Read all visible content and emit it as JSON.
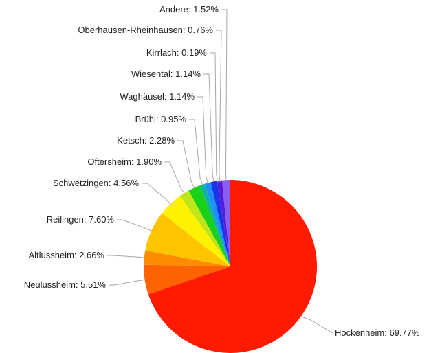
{
  "chart_data": {
    "type": "pie",
    "title": "",
    "start_angle_deg": 0,
    "direction": "clockwise",
    "label_format": "{name}: {percent}%",
    "slices": [
      {
        "name": "Hockenheim",
        "percent": "69.77",
        "value": 69.77,
        "color": "#ff1a00"
      },
      {
        "name": "Neulussheim",
        "percent": "5.51",
        "value": 5.51,
        "color": "#ff6200"
      },
      {
        "name": "Altlussheim",
        "percent": "2.66",
        "value": 2.66,
        "color": "#ff8c00"
      },
      {
        "name": "Reilingen",
        "percent": "7.60",
        "value": 7.6,
        "color": "#ffc400"
      },
      {
        "name": "Schwetzingen",
        "percent": "4.56",
        "value": 4.56,
        "color": "#fff200"
      },
      {
        "name": "Oftersheim",
        "percent": "1.90",
        "value": 1.9,
        "color": "#bfe61a"
      },
      {
        "name": "Ketsch",
        "percent": "2.28",
        "value": 2.28,
        "color": "#1ad11a"
      },
      {
        "name": "Brühl",
        "percent": "0.95",
        "value": 0.95,
        "color": "#12b3a0"
      },
      {
        "name": "Waghäusel",
        "percent": "1.14",
        "value": 1.14,
        "color": "#1f8cff"
      },
      {
        "name": "Wiesental",
        "percent": "1.14",
        "value": 1.14,
        "color": "#1a33e6"
      },
      {
        "name": "Kirrlach",
        "percent": "0.19",
        "value": 0.19,
        "color": "#2a1ad9"
      },
      {
        "name": "Oberhausen-Rheinhausen",
        "percent": "0.76",
        "value": 0.76,
        "color": "#5a1ad9"
      },
      {
        "name": "Andere",
        "percent": "1.52",
        "value": 1.52,
        "color": "#8a5cf0"
      }
    ]
  }
}
